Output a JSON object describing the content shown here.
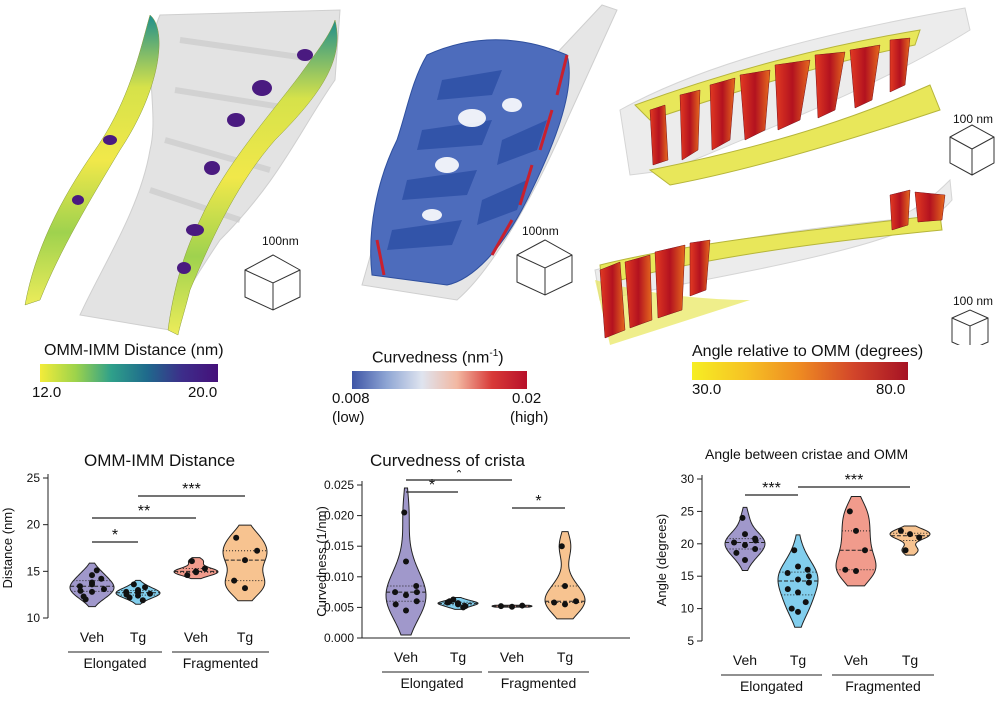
{
  "render_labels": {
    "scale_a": "100nm",
    "scale_b": "100nm",
    "scale_c1": "100 nm",
    "scale_c2": "100 nm"
  },
  "colorbars": {
    "distance": {
      "label": "OMM-IMM Distance (nm)",
      "min": "12.0",
      "max": "20.0",
      "colors": [
        "#f3ec3a",
        "#9dd34b",
        "#2fa08a",
        "#1f6a8c",
        "#3d2d8a",
        "#45107a"
      ]
    },
    "curvedness": {
      "label_main": "Curvedness (nm",
      "label_sup": "-1",
      "label_end": ")",
      "min": "0.008",
      "min_note": "(low)",
      "max": "0.02",
      "max_note": "(high)",
      "colors": [
        "#3e55a6",
        "#8fa6d4",
        "#dfe4ef",
        "#f2b8a2",
        "#d83a38",
        "#b8102a"
      ]
    },
    "angle": {
      "label": "Angle relative to OMM (degrees)",
      "min": "30.0",
      "max": "80.0",
      "colors": [
        "#f6ee24",
        "#f6c224",
        "#ee8a22",
        "#d2452a",
        "#a61224"
      ]
    }
  },
  "chart_data": [
    {
      "type": "violin",
      "title": "OMM-IMM Distance",
      "ylabel": "Distance (nm)",
      "ylim": [
        10,
        25
      ],
      "yticks": [
        "10",
        "15",
        "20",
        "25"
      ],
      "categories": [
        "Veh",
        "Tg",
        "Veh",
        "Tg"
      ],
      "groups": [
        "Elongated",
        "Fragmented"
      ],
      "colors": [
        "#8f86c2",
        "#6cc6ea",
        "#ee8a78",
        "#f6b97c"
      ],
      "series": [
        {
          "values": [
            12.3,
            12.8,
            13.1,
            13.4,
            13.8,
            14.2,
            12.9,
            13.6,
            15.1,
            12.0,
            14.6
          ]
        },
        {
          "values": [
            12.2,
            12.4,
            12.6,
            12.8,
            13.0,
            13.3,
            12.5,
            12.9,
            11.9,
            13.6,
            12.7
          ]
        },
        {
          "values": [
            14.6,
            15.0,
            15.3,
            16.1,
            14.9
          ]
        },
        {
          "values": [
            14.0,
            16.2,
            17.2,
            18.6,
            13.2
          ]
        }
      ],
      "significance": [
        {
          "from": 0,
          "to": 1,
          "label": "*"
        },
        {
          "from": 0,
          "to": 2,
          "label": "**"
        },
        {
          "from": 1,
          "to": 3,
          "label": "***"
        }
      ]
    },
    {
      "type": "violin",
      "title": "Curvedness of crista",
      "ylabel": "Curvedness (1/nm)",
      "ylim": [
        0,
        0.025
      ],
      "yticks": [
        "0.000",
        "0.005",
        "0.010",
        "0.015",
        "0.020",
        "0.025"
      ],
      "categories": [
        "Veh",
        "Tg",
        "Veh",
        "Tg"
      ],
      "groups": [
        "Elongated",
        "Fragmented"
      ],
      "colors": [
        "#8f86c2",
        "#6cc6ea",
        "#ee8a78",
        "#f6b97c"
      ],
      "series": [
        {
          "values": [
            0.0205,
            0.0125,
            0.0085,
            0.0075,
            0.007,
            0.006,
            0.0055,
            0.0045,
            0.0075
          ]
        },
        {
          "values": [
            0.0058,
            0.0055,
            0.0052,
            0.006,
            0.0056,
            0.005,
            0.0063,
            0.0057
          ]
        },
        {
          "values": [
            0.0052,
            0.0051,
            0.0053
          ]
        },
        {
          "values": [
            0.015,
            0.0085,
            0.006,
            0.0058,
            0.0055
          ]
        }
      ],
      "significance": [
        {
          "from": 0,
          "to": 1,
          "label": "*"
        },
        {
          "from": 0,
          "to": 2,
          "label": "*"
        },
        {
          "from": 2,
          "to": 3,
          "label": "*"
        }
      ]
    },
    {
      "type": "violin",
      "title": "Angle between cristae and OMM",
      "ylabel": "Angle (degrees)",
      "ylim": [
        5,
        30
      ],
      "yticks": [
        "5",
        "10",
        "15",
        "20",
        "25",
        "30"
      ],
      "categories": [
        "Veh",
        "Tg",
        "Veh",
        "Tg"
      ],
      "groups": [
        "Elongated",
        "Fragmented"
      ],
      "colors": [
        "#8f86c2",
        "#6cc6ea",
        "#ee8a78",
        "#f6b97c"
      ],
      "series": [
        {
          "values": [
            24.0,
            21.5,
            20.8,
            20.2,
            19.8,
            19.2,
            18.6,
            17.5,
            20.5
          ]
        },
        {
          "values": [
            19.0,
            16.5,
            16.0,
            15.5,
            14.5,
            14.0,
            13.0,
            12.5,
            11.0,
            10.0,
            9.5,
            15.0
          ]
        },
        {
          "values": [
            25.0,
            22.0,
            19.0,
            16.0,
            15.8
          ]
        },
        {
          "values": [
            22.0,
            21.5,
            21.0,
            19.0
          ]
        }
      ],
      "significance": [
        {
          "from": 0,
          "to": 1,
          "label": "***"
        },
        {
          "from": 1,
          "to": 3,
          "label": "***"
        }
      ]
    }
  ]
}
